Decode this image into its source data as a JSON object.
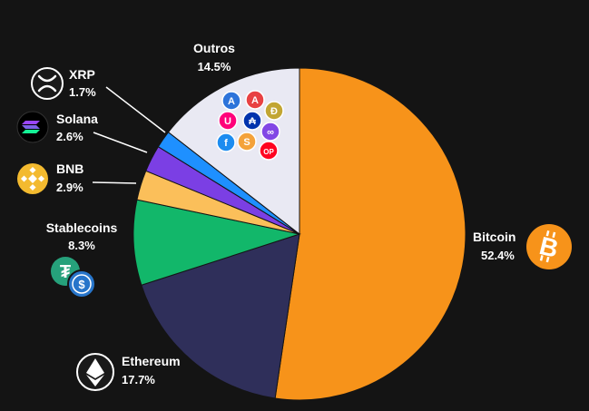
{
  "chart_data": {
    "type": "pie",
    "title": "",
    "slices": [
      {
        "label": "Bitcoin",
        "value": 52.4,
        "value_label": "52.4%",
        "color": "#F7931A",
        "icon": "bitcoin-icon"
      },
      {
        "label": "Ethereum",
        "value": 17.7,
        "value_label": "17.7%",
        "color": "#2F2F5A",
        "icon": "ethereum-icon"
      },
      {
        "label": "Stablecoins",
        "value": 8.3,
        "value_label": "8.3%",
        "color": "#12B76A",
        "icon": "tether-usdc-icon"
      },
      {
        "label": "BNB",
        "value": 2.9,
        "value_label": "2.9%",
        "color": "#FBBF5A",
        "icon": "bnb-icon"
      },
      {
        "label": "Solana",
        "value": 2.6,
        "value_label": "2.6%",
        "color": "#7B3FE4",
        "icon": "solana-icon"
      },
      {
        "label": "XRP",
        "value": 1.7,
        "value_label": "1.7%",
        "color": "#1E90FF",
        "icon": "xrp-icon"
      },
      {
        "label": "Outros",
        "value": 14.5,
        "value_label": "14.5%",
        "color": "#E9E9F3",
        "icon": "altcoins-icon-cluster"
      }
    ],
    "start_direction": "top",
    "direction": "clockwise",
    "legend": "none"
  },
  "altcoin_badges": [
    {
      "icon": "arbitrum-icon",
      "text": "A",
      "color": "#2D74DA"
    },
    {
      "icon": "avalanche-icon",
      "text": "A",
      "color": "#E84142"
    },
    {
      "icon": "uniswap-icon",
      "text": "U",
      "color": "#FF007A"
    },
    {
      "icon": "cardano-icon",
      "text": "₳",
      "color": "#0033AD"
    },
    {
      "icon": "dogecoin-icon",
      "text": "Ð",
      "color": "#C2A633"
    },
    {
      "icon": "polygon-icon",
      "text": "∞",
      "color": "#8247E5"
    },
    {
      "icon": "fetch-ai-icon",
      "text": "f",
      "color": "#1C8CF0"
    },
    {
      "icon": "shiba-inu-icon",
      "text": "S",
      "color": "#F4A23A"
    },
    {
      "icon": "optimism-icon",
      "text": "OP",
      "color": "#FF0420"
    }
  ]
}
